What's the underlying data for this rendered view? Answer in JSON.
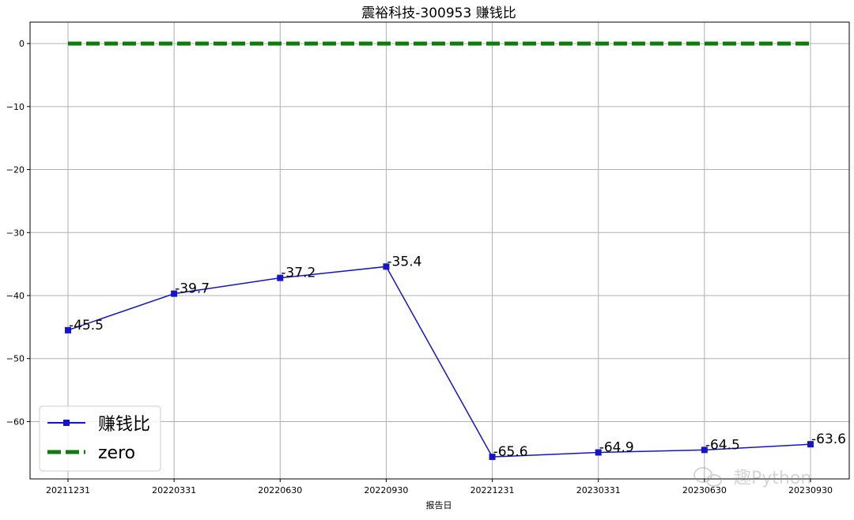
{
  "chart_data": {
    "type": "line",
    "title": "震裕科技-300953 赚钱比",
    "xlabel": "报告日",
    "ylabel": "",
    "categories": [
      "20211231",
      "20220331",
      "20220630",
      "20220930",
      "20221231",
      "20230331",
      "20230630",
      "20230930"
    ],
    "ylim": [
      -69.1,
      3.4
    ],
    "yticks": [
      0,
      -10,
      -20,
      -30,
      -40,
      -50,
      -60
    ],
    "grid": true,
    "legend_position": "lower-left",
    "series": [
      {
        "name": "赚钱比",
        "values": [
          -45.5,
          -39.7,
          -37.2,
          -35.4,
          -65.6,
          -64.9,
          -64.5,
          -63.6
        ],
        "data_labels": [
          "-45.5",
          "-39.7",
          "-37.2",
          "-35.4",
          "-65.6",
          "-64.9",
          "-64.5",
          "-63.6"
        ],
        "color": "#1414c8",
        "marker": "square",
        "style": "solid"
      },
      {
        "name": "zero",
        "values": [
          0,
          0,
          0,
          0,
          0,
          0,
          0,
          0
        ],
        "color": "#0a7d0a",
        "style": "dashed"
      }
    ]
  },
  "watermark": {
    "text": "趣Python",
    "icon": "wechat-icon"
  }
}
